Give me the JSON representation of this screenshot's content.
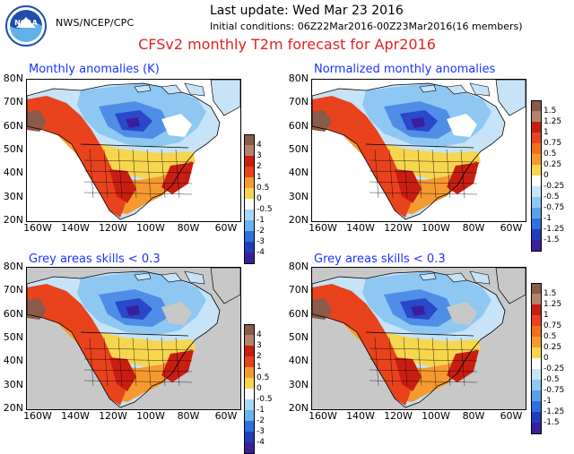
{
  "header": {
    "agency": "NWS/NCEP/CPC",
    "last_update": "Last update: Wed Mar 23 2016",
    "initial_conditions": "Initial conditions: 06Z22Mar2016-00Z23Mar2016(16 members)",
    "title": "CFSv2 monthly T2m forecast for Apr2016"
  },
  "logo": {
    "text": "NOAA"
  },
  "panels": [
    {
      "title": "Monthly anomalies (K)",
      "grey_mask": false
    },
    {
      "title": "Normalized monthly anomalies",
      "grey_mask": false
    },
    {
      "title": "Grey areas skills < 0.3",
      "grey_mask": true
    },
    {
      "title": "Grey areas skills < 0.3",
      "grey_mask": true
    }
  ],
  "axes": {
    "lat_labels": [
      "80N",
      "70N",
      "60N",
      "50N",
      "40N",
      "30N",
      "20N"
    ],
    "lon_labels": [
      "160W",
      "140W",
      "120W",
      "100W",
      "80W",
      "60W"
    ]
  },
  "colorbars": {
    "anomaly_k": {
      "ticks": [
        "4",
        "3",
        "2",
        "1",
        "0.5",
        "0",
        "-0.5",
        "-1",
        "-2",
        "-3",
        "-4"
      ],
      "colors": [
        "#8a5a4a",
        "#b5836c",
        "#c81e12",
        "#e8431c",
        "#f59a30",
        "#f7d64f",
        "#ffffff",
        "#a8d8f5",
        "#6ab2ee",
        "#2f6fe0",
        "#1f3ebd",
        "#3a1f9c"
      ]
    },
    "normalized": {
      "ticks": [
        "1.5",
        "1.25",
        "1",
        "0.75",
        "0.5",
        "0.25",
        "0",
        "-0.25",
        "-0.5",
        "-0.75",
        "-1",
        "-1.25",
        "-1.5"
      ],
      "colors": [
        "#8a5a4a",
        "#b5836c",
        "#c81e12",
        "#e8431c",
        "#f0701f",
        "#f59a30",
        "#f7d64f",
        "#ffffff",
        "#c4e6f8",
        "#8ec7f2",
        "#5a9fe9",
        "#2f6fe0",
        "#1f3ebd",
        "#3a1f9c"
      ]
    }
  },
  "map_colors": {
    "land_default": "#c6e3f7",
    "ocean": "#ffffff",
    "grey_mask": "#c8c8c8",
    "light_blue": "#8ec7f2",
    "mid_blue": "#4f8ee6",
    "deep_blue": "#2a48c9",
    "purple": "#3a1f9c",
    "yellow": "#f7d64f",
    "orange": "#f59a30",
    "red_orange": "#e8431c",
    "red": "#c81e12",
    "brown": "#8a5a4a",
    "outline": "#000000"
  }
}
